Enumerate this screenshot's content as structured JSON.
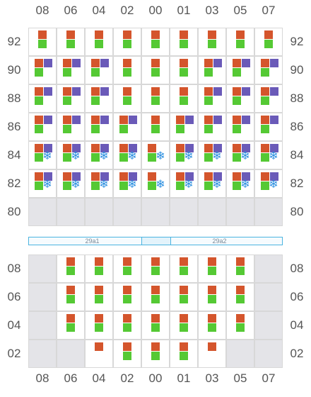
{
  "columns": [
    "08",
    "06",
    "04",
    "02",
    "00",
    "01",
    "03",
    "05",
    "07"
  ],
  "upper": {
    "rows": [
      "92",
      "90",
      "88",
      "86",
      "84",
      "82",
      "80"
    ],
    "cells": [
      [
        "OG",
        "OG",
        "OG",
        "OG",
        "OG",
        "OG",
        "OG",
        "OG",
        "OG"
      ],
      [
        "OGP",
        "OGP",
        "OGP",
        "OG",
        "OG",
        "OG",
        "OGP",
        "OGP",
        "OGP"
      ],
      [
        "OGP",
        "OGP",
        "OGP",
        "OG",
        "OG",
        "OG",
        "OGP",
        "OGP",
        "OGP"
      ],
      [
        "OGP",
        "OGP",
        "OGP",
        "OGP",
        "OG",
        "OGP",
        "OGP",
        "OGP",
        "OGP"
      ],
      [
        "OGPS",
        "OGPS",
        "OGPS",
        "OGPS",
        "OGS",
        "OGPS",
        "OGPS",
        "OGPS",
        "OGPS"
      ],
      [
        "OGPS",
        "OGPS",
        "OGPS",
        "OGPS",
        "OGS",
        "OGPS",
        "OGPS",
        "OGPS",
        "OGPS"
      ],
      [
        "E",
        "E",
        "E",
        "E",
        "E",
        "E",
        "E",
        "E",
        "E"
      ]
    ]
  },
  "separator": {
    "left_label": "29a1",
    "right_label": "29a2"
  },
  "lower": {
    "rows": [
      "08",
      "06",
      "04",
      "02"
    ],
    "cells": [
      [
        "E",
        "OG",
        "OG",
        "OG",
        "OG",
        "OG",
        "OG",
        "OG",
        "E"
      ],
      [
        "E",
        "OG",
        "OG",
        "OG",
        "OG",
        "OG",
        "OG",
        "OG",
        "E"
      ],
      [
        "E",
        "OG",
        "OG",
        "OG",
        "OG",
        "OG",
        "OG",
        "OG",
        "E"
      ],
      [
        "E",
        "E",
        "O",
        "OG",
        "OG",
        "OG",
        "O",
        "E",
        "E"
      ]
    ]
  },
  "legend_icons": {
    "O": "orange-square-icon",
    "G": "green-square-icon",
    "P": "purple-square-icon",
    "S": "snowflake-icon"
  },
  "colors": {
    "orange": "#d4552c",
    "green": "#55c934",
    "purple": "#6a5ab8",
    "snowflake": "#2b8fe0",
    "empty": "#e4e4e8"
  },
  "snow_glyph": "❄"
}
